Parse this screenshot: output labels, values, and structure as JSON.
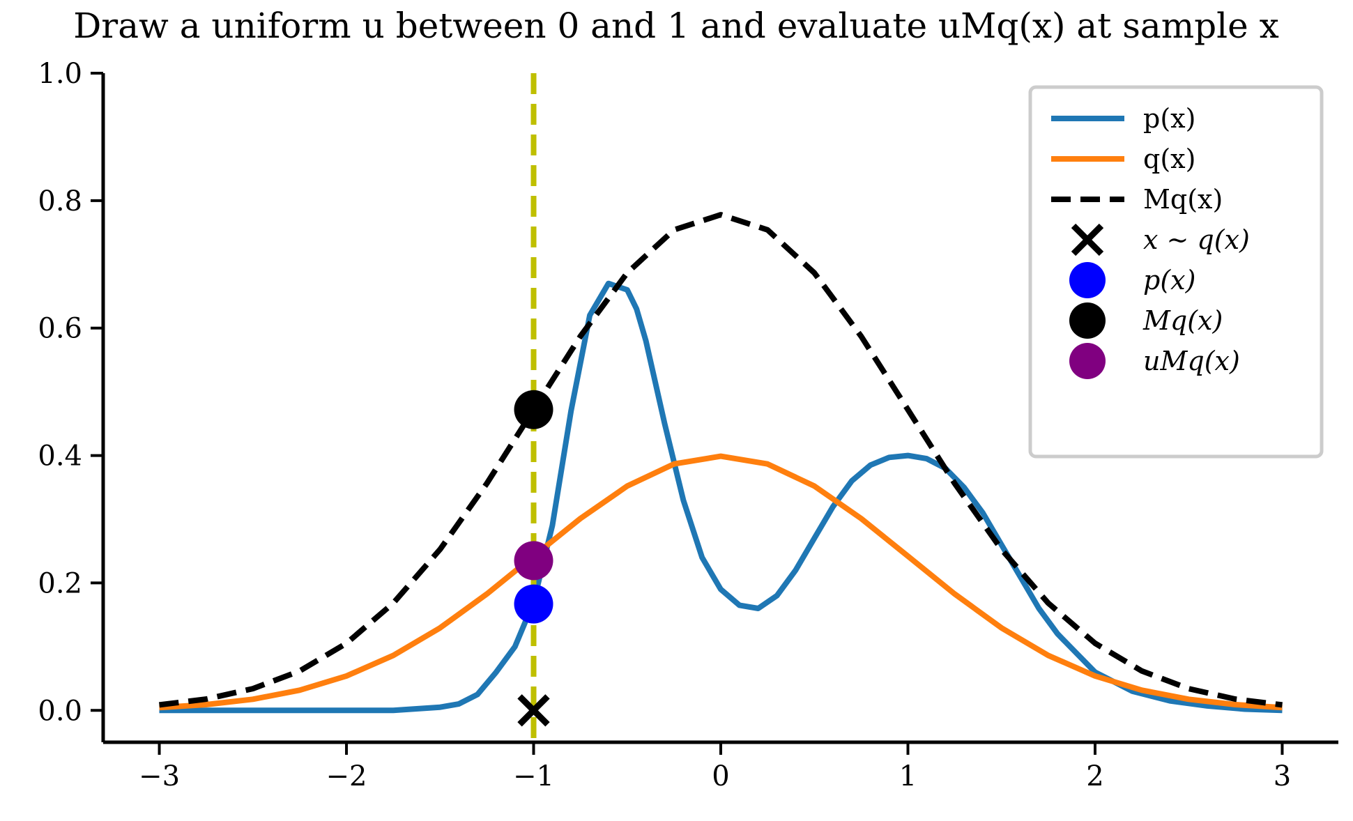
{
  "chart_data": {
    "type": "line",
    "title": "Draw a uniform u between 0 and 1 and evaluate uMq(x) at sample x",
    "xlabel": "",
    "ylabel": "",
    "xlim": [
      -3.3,
      3.3
    ],
    "ylim": [
      -0.05,
      1.0
    ],
    "xticks": [
      -3,
      -2,
      -1,
      0,
      1,
      2,
      3
    ],
    "xtick_labels": [
      "−3",
      "−2",
      "−1",
      "0",
      "1",
      "2",
      "3"
    ],
    "yticks": [
      0.0,
      0.2,
      0.4,
      0.6,
      0.8,
      1.0
    ],
    "ytick_labels": [
      "0.0",
      "0.2",
      "0.4",
      "0.6",
      "0.8",
      "1.0"
    ],
    "grid": false,
    "legend_position": "top-right",
    "series": [
      {
        "name": "p(x)",
        "kind": "line",
        "color": "#1f77b4",
        "function": "0.3*N(-0.5,0.2)+0.7*N(1,0.7) scaled",
        "x": [
          -3.0,
          -2.5,
          -2.0,
          -1.75,
          -1.5,
          -1.4,
          -1.3,
          -1.2,
          -1.1,
          -1.0,
          -0.9,
          -0.8,
          -0.7,
          -0.6,
          -0.5,
          -0.45,
          -0.4,
          -0.3,
          -0.2,
          -0.1,
          0.0,
          0.1,
          0.2,
          0.3,
          0.4,
          0.5,
          0.6,
          0.7,
          0.8,
          0.9,
          1.0,
          1.1,
          1.2,
          1.3,
          1.4,
          1.5,
          1.6,
          1.7,
          1.8,
          1.9,
          2.0,
          2.2,
          2.4,
          2.6,
          2.8,
          3.0
        ],
        "y": [
          0.0,
          0.0,
          0.0,
          0.0,
          0.005,
          0.01,
          0.025,
          0.06,
          0.1,
          0.17,
          0.29,
          0.47,
          0.62,
          0.67,
          0.66,
          0.63,
          0.58,
          0.45,
          0.33,
          0.24,
          0.19,
          0.165,
          0.16,
          0.18,
          0.22,
          0.27,
          0.32,
          0.36,
          0.385,
          0.397,
          0.4,
          0.395,
          0.38,
          0.35,
          0.31,
          0.26,
          0.21,
          0.16,
          0.12,
          0.09,
          0.06,
          0.03,
          0.015,
          0.007,
          0.002,
          0.0
        ]
      },
      {
        "name": "q(x)",
        "kind": "line",
        "color": "#ff7f0e",
        "function": "N(0,1)",
        "x": [
          -3.0,
          -2.75,
          -2.5,
          -2.25,
          -2.0,
          -1.75,
          -1.5,
          -1.25,
          -1.0,
          -0.75,
          -0.5,
          -0.25,
          0.0,
          0.25,
          0.5,
          0.75,
          1.0,
          1.25,
          1.5,
          1.75,
          2.0,
          2.25,
          2.5,
          2.75,
          3.0
        ],
        "y": [
          0.0044,
          0.0091,
          0.0175,
          0.0317,
          0.054,
          0.0863,
          0.1295,
          0.1826,
          0.242,
          0.3011,
          0.3521,
          0.3867,
          0.3989,
          0.3867,
          0.3521,
          0.3011,
          0.242,
          0.1826,
          0.1295,
          0.0863,
          0.054,
          0.0317,
          0.0175,
          0.0091,
          0.0044
        ]
      },
      {
        "name": "Mq(x)",
        "kind": "dashed-line",
        "color": "#000000",
        "function": "1.95*N(0,1)",
        "x": [
          -3.0,
          -2.75,
          -2.5,
          -2.25,
          -2.0,
          -1.75,
          -1.5,
          -1.25,
          -1.0,
          -0.75,
          -0.5,
          -0.25,
          0.0,
          0.25,
          0.5,
          0.75,
          1.0,
          1.25,
          1.5,
          1.75,
          2.0,
          2.25,
          2.5,
          2.75,
          3.0
        ],
        "y": [
          0.0086,
          0.0177,
          0.0341,
          0.0618,
          0.1053,
          0.1683,
          0.2526,
          0.3561,
          0.4719,
          0.5871,
          0.6866,
          0.7541,
          0.7779,
          0.7541,
          0.6866,
          0.5871,
          0.4719,
          0.3561,
          0.2526,
          0.1683,
          0.1053,
          0.0618,
          0.0341,
          0.0177,
          0.0086
        ]
      }
    ],
    "markers": [
      {
        "name": "x ∼ q(x)",
        "shape": "x",
        "color": "#000000",
        "x": -1.0,
        "y": 0.0
      },
      {
        "name": "p(x)",
        "shape": "circle",
        "color": "#0000ff",
        "x": -1.0,
        "y": 0.167
      },
      {
        "name": "Mq(x)",
        "shape": "circle",
        "color": "#000000",
        "x": -1.0,
        "y": 0.472
      },
      {
        "name": "uMq(x)",
        "shape": "circle",
        "color": "#800080",
        "x": -1.0,
        "y": 0.235
      }
    ],
    "vertical_line": {
      "x": -1.0,
      "color": "#bfbf00",
      "style": "dashed"
    },
    "legend": [
      {
        "label": "p(x)",
        "kind": "line",
        "color": "#1f77b4",
        "math": false
      },
      {
        "label": "q(x)",
        "kind": "line",
        "color": "#ff7f0e",
        "math": false
      },
      {
        "label": "Mq(x)",
        "kind": "dashed",
        "color": "#000000",
        "math": false
      },
      {
        "label": "x ∼ q(x)",
        "kind": "x",
        "color": "#000000",
        "math": true
      },
      {
        "label": "p(x)",
        "kind": "circle",
        "color": "#0000ff",
        "math": true
      },
      {
        "label": "Mq(x)",
        "kind": "circle",
        "color": "#000000",
        "math": true
      },
      {
        "label": "uMq(x)",
        "kind": "circle",
        "color": "#800080",
        "math": true
      }
    ]
  }
}
